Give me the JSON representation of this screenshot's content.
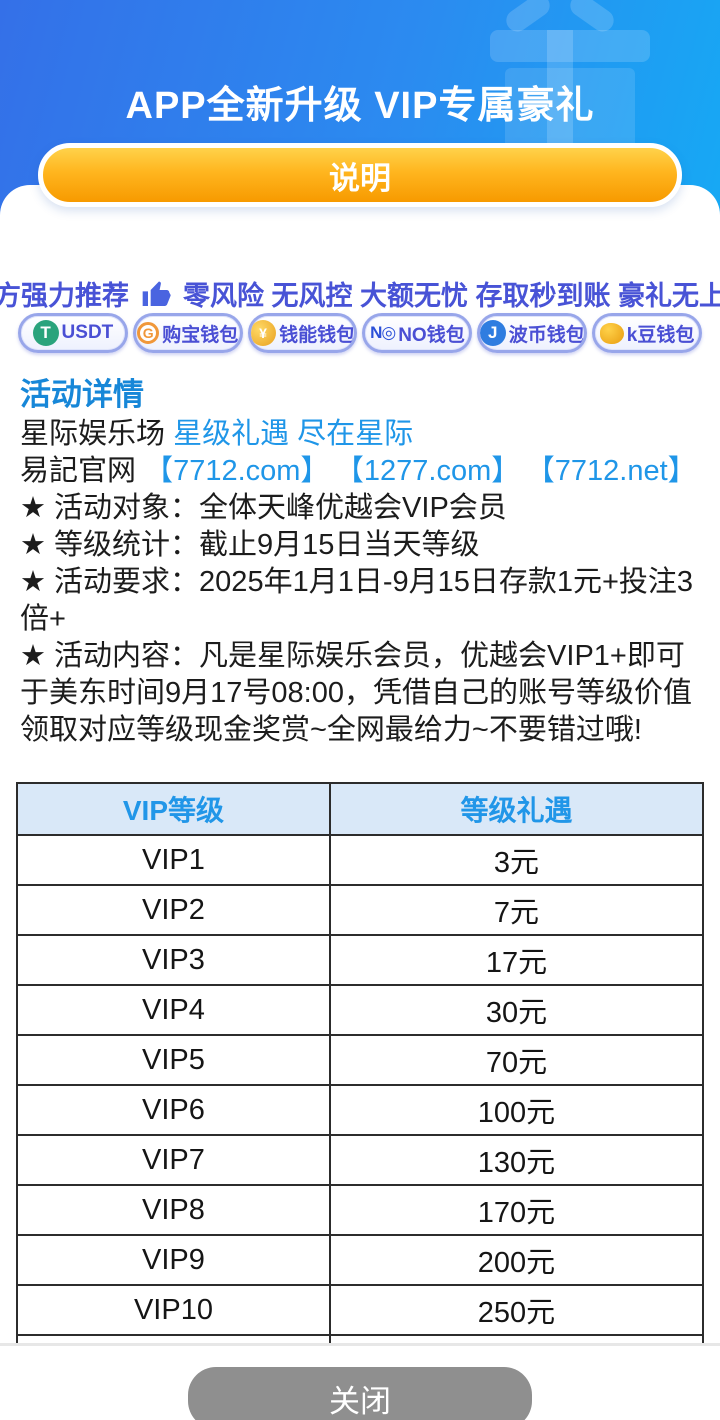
{
  "header": {
    "title": "APP全新升级 VIP专属豪礼",
    "explain_button": "说明",
    "gradient_start": "#3470e8",
    "gradient_end": "#16a9f4"
  },
  "promo": {
    "lead": "官方强力推荐",
    "thumb_icon": "thumbs-up-icon",
    "items": [
      "零风险",
      "无风控",
      "大额无忧",
      "存取秒到账",
      "豪礼无上限"
    ],
    "color": "#4853d6"
  },
  "wallets": [
    {
      "type": "usdt",
      "icon": "usdt-icon",
      "icon_text": "T",
      "label": "USDT"
    },
    {
      "type": "goubao",
      "icon": "goubao-icon",
      "icon_text": "G",
      "label": "购宝钱包"
    },
    {
      "type": "qianneng",
      "icon": "qianneng-icon",
      "icon_text": "¥",
      "label": "钱能钱包"
    },
    {
      "type": "nono",
      "icon": "nono-icon",
      "icon_text": "N◎",
      "label": "NO钱包"
    },
    {
      "type": "bobi",
      "icon": "bobi-icon",
      "icon_text": "J",
      "label": "波币钱包"
    },
    {
      "type": "kdou",
      "icon": "kdou-icon",
      "icon_text": "",
      "label": "k豆钱包"
    }
  ],
  "details": {
    "heading": "活动详情",
    "line1_black": "星际娱乐场 ",
    "line1_blue": "星级礼遇 尽在星际",
    "line2_black": "易記官网 ",
    "line2_links": [
      "【7712.com】",
      "【1277.com】",
      "【7712.net】"
    ],
    "bullets": [
      "★ 活动对象：全体天峰优越会VIP会员",
      "★ 等级统计：截止9月15日当天等级",
      "★ 活动要求：2025年1月1日-9月15日存款1元+投注3倍+",
      "★ 活动内容：凡是星际娱乐会员，优越会VIP1+即可于美东时间9月17号08:00，凭借自己的账号等级价值领取对应等级现金奖赏~全网最给力~不要错过哦!"
    ]
  },
  "table": {
    "headers": [
      "VIP等级",
      "等级礼遇"
    ],
    "rows": [
      [
        "VIP1",
        "3元"
      ],
      [
        "VIP2",
        "7元"
      ],
      [
        "VIP3",
        "17元"
      ],
      [
        "VIP4",
        "30元"
      ],
      [
        "VIP5",
        "70元"
      ],
      [
        "VIP6",
        "100元"
      ],
      [
        "VIP7",
        "130元"
      ],
      [
        "VIP8",
        "170元"
      ],
      [
        "VIP9",
        "200元"
      ],
      [
        "VIP10",
        "250元"
      ]
    ]
  },
  "footer": {
    "close_button": "关闭"
  }
}
